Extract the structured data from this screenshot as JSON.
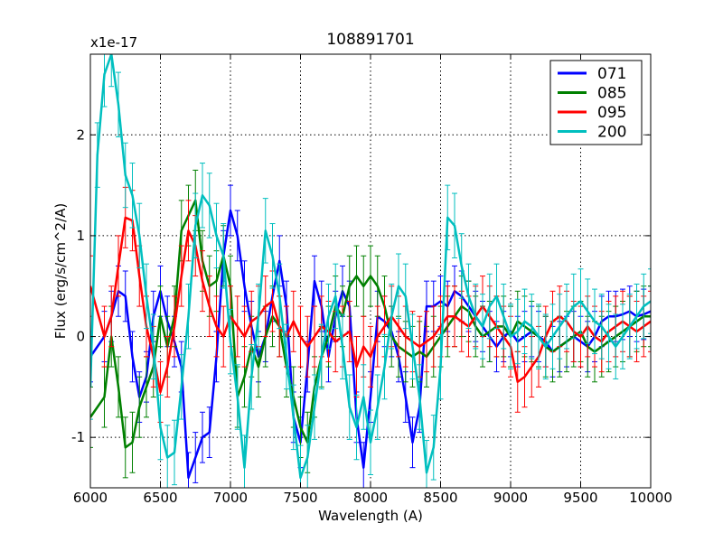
{
  "chart_data": {
    "type": "line",
    "title": "108891701",
    "xlabel": "Wavelength (A)",
    "ylabel": "Flux (erg/s/cm^2/A)",
    "offset_label": "x1e-17",
    "xlim": [
      6000,
      10000
    ],
    "ylim": [
      -1.5,
      2.8
    ],
    "grid": true,
    "legend_position": "top-right",
    "xticks": [
      6000,
      6500,
      7000,
      7500,
      8000,
      8500,
      9000,
      9500,
      10000
    ],
    "yticks": [
      -1,
      0,
      1,
      2
    ],
    "series": [
      {
        "name": "071",
        "color": "#0000ff",
        "x": [
          6000,
          6100,
          6150,
          6200,
          6250,
          6300,
          6350,
          6400,
          6450,
          6500,
          6550,
          6600,
          6650,
          6700,
          6750,
          6800,
          6850,
          6900,
          6950,
          7000,
          7050,
          7100,
          7150,
          7200,
          7250,
          7300,
          7350,
          7400,
          7450,
          7500,
          7550,
          7600,
          7650,
          7700,
          7750,
          7800,
          7850,
          7900,
          7950,
          8000,
          8050,
          8100,
          8150,
          8200,
          8250,
          8300,
          8350,
          8400,
          8450,
          8500,
          8550,
          8600,
          8650,
          8700,
          8750,
          8800,
          8850,
          8900,
          8950,
          9000,
          9050,
          9100,
          9150,
          9200,
          9250,
          9300,
          9350,
          9400,
          9450,
          9500,
          9550,
          9600,
          9650,
          9700,
          9750,
          9800,
          9850,
          9900,
          9950,
          10000
        ],
        "y": [
          -0.2,
          0.0,
          0.2,
          0.45,
          0.4,
          -0.2,
          -0.6,
          -0.4,
          0.2,
          0.45,
          0.15,
          -0.05,
          -0.3,
          -1.4,
          -1.2,
          -1.0,
          -0.95,
          -0.2,
          0.8,
          1.25,
          1.0,
          0.5,
          0.1,
          -0.2,
          0.0,
          0.4,
          0.75,
          0.3,
          -0.8,
          -1.05,
          -0.3,
          0.55,
          0.3,
          -0.2,
          0.2,
          0.45,
          0.3,
          -0.8,
          -1.3,
          -0.6,
          0.2,
          0.15,
          0.05,
          -0.2,
          -0.6,
          -1.05,
          -0.7,
          0.3,
          0.3,
          0.35,
          0.3,
          0.45,
          0.4,
          0.3,
          0.2,
          0.1,
          0.0,
          -0.1,
          0.0,
          0.05,
          -0.05,
          0.0,
          0.05,
          0.0,
          -0.05,
          -0.15,
          -0.1,
          -0.05,
          0.0,
          -0.05,
          -0.1,
          0.0,
          0.15,
          0.2,
          0.2,
          0.22,
          0.25,
          0.2,
          0.22,
          0.25
        ],
        "err": 0.25
      },
      {
        "name": "085",
        "color": "#008000",
        "x": [
          6000,
          6100,
          6150,
          6200,
          6250,
          6300,
          6350,
          6400,
          6450,
          6500,
          6550,
          6600,
          6650,
          6700,
          6750,
          6800,
          6850,
          6900,
          6950,
          7000,
          7050,
          7100,
          7150,
          7200,
          7250,
          7300,
          7350,
          7400,
          7450,
          7500,
          7550,
          7600,
          7650,
          7700,
          7750,
          7800,
          7850,
          7900,
          7950,
          8000,
          8050,
          8100,
          8150,
          8200,
          8250,
          8300,
          8350,
          8400,
          8450,
          8500,
          8550,
          8600,
          8650,
          8700,
          8750,
          8800,
          8850,
          8900,
          8950,
          9000,
          9050,
          9100,
          9150,
          9200,
          9250,
          9300,
          9350,
          9400,
          9450,
          9500,
          9550,
          9600,
          9650,
          9700,
          9750,
          9800,
          9850,
          9900,
          9950,
          10000
        ],
        "y": [
          -0.8,
          -0.6,
          0.0,
          -0.5,
          -1.1,
          -1.05,
          -0.7,
          -0.5,
          -0.3,
          0.2,
          -0.1,
          0.2,
          1.05,
          1.2,
          1.35,
          0.75,
          0.5,
          0.55,
          0.8,
          0.5,
          -0.6,
          -0.4,
          -0.1,
          -0.3,
          0.0,
          0.2,
          0.1,
          -0.3,
          -0.6,
          -0.9,
          -1.05,
          -0.5,
          -0.2,
          0.0,
          0.3,
          0.2,
          0.5,
          0.6,
          0.5,
          0.6,
          0.5,
          0.3,
          0.0,
          -0.1,
          -0.15,
          -0.2,
          -0.15,
          -0.2,
          -0.1,
          0.0,
          0.1,
          0.2,
          0.3,
          0.25,
          0.1,
          0.0,
          0.05,
          0.1,
          0.1,
          0.0,
          0.15,
          0.1,
          0.05,
          0.0,
          -0.1,
          -0.15,
          -0.1,
          -0.05,
          0.0,
          0.05,
          -0.1,
          -0.15,
          -0.1,
          -0.05,
          0.0,
          0.05,
          0.1,
          0.15,
          0.2,
          0.2
        ],
        "err": 0.3
      },
      {
        "name": "095",
        "color": "#ff0000",
        "x": [
          6000,
          6100,
          6150,
          6200,
          6250,
          6300,
          6350,
          6400,
          6450,
          6500,
          6550,
          6600,
          6650,
          6700,
          6750,
          6800,
          6850,
          6900,
          6950,
          7000,
          7050,
          7100,
          7150,
          7200,
          7250,
          7300,
          7350,
          7400,
          7450,
          7500,
          7550,
          7600,
          7650,
          7700,
          7750,
          7800,
          7850,
          7900,
          7950,
          8000,
          8050,
          8100,
          8150,
          8200,
          8250,
          8300,
          8350,
          8400,
          8450,
          8500,
          8550,
          8600,
          8650,
          8700,
          8750,
          8800,
          8850,
          8900,
          8950,
          9000,
          9050,
          9100,
          9150,
          9200,
          9250,
          9300,
          9350,
          9400,
          9450,
          9500,
          9550,
          9600,
          9650,
          9700,
          9750,
          9800,
          9850,
          9900,
          9950,
          10000
        ],
        "y": [
          0.5,
          0.0,
          0.2,
          0.7,
          1.18,
          1.15,
          0.6,
          0.1,
          -0.2,
          -0.55,
          -0.3,
          0.1,
          0.6,
          1.05,
          0.9,
          0.55,
          0.3,
          0.1,
          0.0,
          0.2,
          0.1,
          0.0,
          0.15,
          0.2,
          0.3,
          0.35,
          0.1,
          0.0,
          0.15,
          0.0,
          -0.1,
          0.0,
          0.1,
          0.05,
          -0.05,
          0.0,
          0.05,
          -0.3,
          -0.1,
          -0.2,
          0.0,
          0.1,
          0.2,
          0.1,
          0.0,
          -0.05,
          -0.1,
          -0.05,
          0.0,
          0.1,
          0.2,
          0.2,
          0.15,
          0.1,
          0.2,
          0.3,
          0.2,
          0.1,
          0.0,
          -0.1,
          -0.45,
          -0.4,
          -0.3,
          -0.2,
          0.0,
          0.15,
          0.2,
          0.15,
          0.05,
          0.0,
          0.1,
          0.0,
          -0.05,
          0.05,
          0.1,
          0.15,
          0.1,
          0.05,
          0.1,
          0.15
        ],
        "err": 0.3
      },
      {
        "name": "200",
        "color": "#00bfbf",
        "x": [
          6000,
          6050,
          6100,
          6150,
          6200,
          6250,
          6300,
          6350,
          6400,
          6450,
          6500,
          6550,
          6600,
          6650,
          6700,
          6750,
          6800,
          6850,
          6900,
          6950,
          7000,
          7050,
          7100,
          7150,
          7200,
          7250,
          7300,
          7350,
          7400,
          7450,
          7500,
          7550,
          7600,
          7650,
          7700,
          7750,
          7800,
          7850,
          7900,
          7950,
          8000,
          8050,
          8100,
          8150,
          8200,
          8250,
          8300,
          8350,
          8400,
          8450,
          8500,
          8550,
          8600,
          8650,
          8700,
          8750,
          8800,
          8850,
          8900,
          8950,
          9000,
          9050,
          9100,
          9150,
          9200,
          9250,
          9300,
          9350,
          9400,
          9450,
          9500,
          9550,
          9600,
          9650,
          9700,
          9750,
          9800,
          9850,
          9900,
          9950,
          10000
        ],
        "y": [
          -0.5,
          1.8,
          2.6,
          2.8,
          2.3,
          1.6,
          1.4,
          1.0,
          0.4,
          -0.1,
          -0.9,
          -1.2,
          -1.15,
          -0.5,
          0.2,
          1.1,
          1.4,
          1.3,
          1.0,
          0.8,
          -0.05,
          -0.6,
          -1.3,
          -0.4,
          0.2,
          1.05,
          0.8,
          0.4,
          -0.2,
          -0.8,
          -1.4,
          -1.2,
          -0.7,
          -0.2,
          0.2,
          0.4,
          -0.1,
          -0.7,
          -0.9,
          -0.6,
          -1.05,
          -0.7,
          -0.3,
          0.2,
          0.5,
          0.4,
          -0.1,
          -0.6,
          -1.35,
          -1.1,
          -0.3,
          1.18,
          1.1,
          0.7,
          0.4,
          0.2,
          0.1,
          0.3,
          0.4,
          0.2,
          0.0,
          0.05,
          0.15,
          0.1,
          0.0,
          -0.1,
          0.0,
          0.1,
          0.2,
          0.3,
          0.35,
          0.25,
          0.15,
          0.1,
          0.0,
          -0.1,
          0.0,
          0.1,
          0.2,
          0.3,
          0.35
        ],
        "err": 0.32
      }
    ]
  }
}
